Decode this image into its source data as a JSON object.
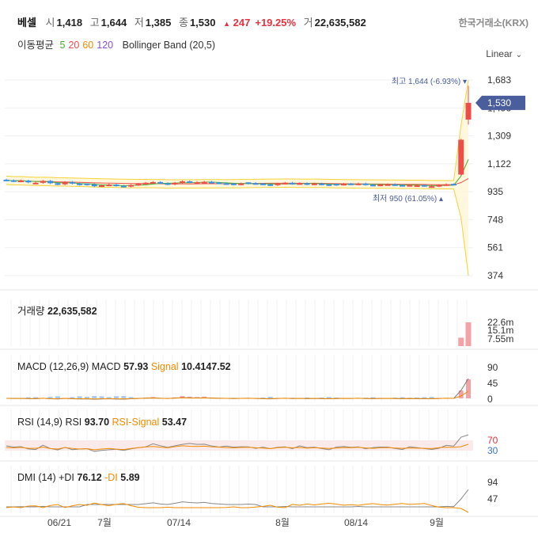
{
  "header": {
    "name": "베셀",
    "open_label": "시",
    "open": "1,418",
    "high_label": "고",
    "high": "1,644",
    "low_label": "저",
    "low": "1,385",
    "close_label": "종",
    "close": "1,530",
    "change": "247",
    "change_pct": "+19.25%",
    "volume_label": "거",
    "volume": "22,635,582",
    "exchange": "한국거래소(KRX)"
  },
  "ma_legend": {
    "label": "이동평균",
    "p5": "5",
    "p20": "20",
    "p60": "60",
    "p120": "120",
    "bb": "Bollinger Band (20,5)"
  },
  "scale_select": {
    "value": "Linear"
  },
  "colors": {
    "up": "#ef4d48",
    "down": "#3b8fe0",
    "ma5": "#43b02a",
    "ma20": "#ef4d48",
    "ma60": "#f28b00",
    "ma120": "#8b4fd6",
    "bb": "#f7d238",
    "signal": "#f28b00",
    "price_tag": "#4a5d9c"
  },
  "chart_data": [
    {
      "type": "candlestick",
      "panel": "price",
      "y_ticks": [
        "1,683",
        "1,496",
        "1,309",
        "1,122",
        "935",
        "748",
        "561",
        "374"
      ],
      "ylim": [
        374,
        1683
      ],
      "x_ticks": [
        "06/21",
        "7월",
        "07/14",
        "8월",
        "08/14",
        "9월"
      ],
      "current_price": "1,530",
      "high_note": "최고 1,644 (-6.93%)",
      "low_note": "최저 950 (61.05%)",
      "closes": [
        1012,
        1005,
        1010,
        998,
        995,
        1008,
        992,
        985,
        1000,
        990,
        982,
        985,
        972,
        978,
        983,
        975,
        970,
        980,
        988,
        995,
        1000,
        992,
        985,
        995,
        1005,
        1000,
        998,
        1002,
        995,
        992,
        988,
        985,
        990,
        993,
        988,
        985,
        980,
        990,
        995,
        988,
        992,
        985,
        990,
        985,
        980,
        983,
        988,
        985,
        990,
        982,
        978,
        983,
        985,
        980,
        976,
        980,
        978,
        975,
        972,
        980,
        985,
        983,
        1283,
        1530
      ],
      "ohlc_last": [
        {
          "o": 1050,
          "h": 1290,
          "l": 1045,
          "c": 1283
        },
        {
          "o": 1418,
          "h": 1644,
          "l": 1385,
          "c": 1530
        }
      ]
    },
    {
      "type": "bar",
      "panel": "volume",
      "label": "거래량",
      "value": "22,635,582",
      "y_ticks": [
        "22.6m",
        "15.1m",
        "7.55m"
      ],
      "last_values_m": [
        8.0,
        22.6
      ]
    },
    {
      "type": "line",
      "panel": "macd",
      "label": "MACD (12,26,9)",
      "macd_label": "MACD",
      "macd": "57.93",
      "signal_label": "Signal",
      "signal": "10.4147.52",
      "y_ticks": [
        "90",
        "45",
        "0"
      ]
    },
    {
      "type": "line",
      "panel": "rsi",
      "label": "RSI (14,9)",
      "rsi_label": "RSI",
      "rsi": "93.70",
      "rsi_signal_label": "RSI-Signal",
      "rsi_signal": "53.47",
      "y_ticks": [
        "70",
        "30"
      ]
    },
    {
      "type": "line",
      "panel": "dmi",
      "label": "DMI (14)",
      "pdi_label": "+DI",
      "pdi": "76.12",
      "mdi_label": "-DI",
      "mdi": "5.89",
      "y_ticks": [
        "94",
        "47"
      ]
    }
  ]
}
